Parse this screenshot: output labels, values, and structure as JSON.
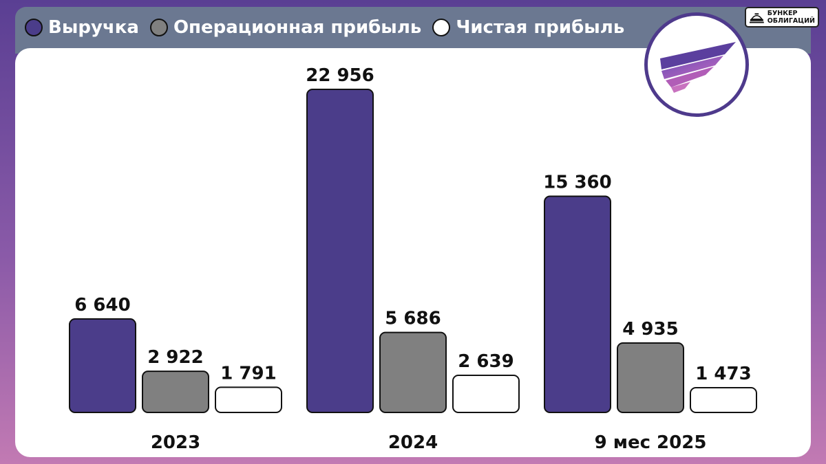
{
  "brand": {
    "line1": "БУНКЕР",
    "line2": "ОБЛИГАЦИЙ",
    "icon": "bunker-icon"
  },
  "logo": {
    "icon": "wing-logo-icon"
  },
  "colors": {
    "revenue": "#4b3d8a",
    "operating": "#808080",
    "net": "#ffffff"
  },
  "chart_data": {
    "type": "bar",
    "categories": [
      "2023",
      "2024",
      "9 мес 2025"
    ],
    "series": [
      {
        "name": "Выручка",
        "values": [
          6640,
          22956,
          15360
        ],
        "labels": [
          "6 640",
          "22 956",
          "15 360"
        ]
      },
      {
        "name": "Операционная прибыль",
        "values": [
          2922,
          5686,
          4935
        ],
        "labels": [
          "2 922",
          "5 686",
          "4 935"
        ]
      },
      {
        "name": "Чистая прибыль",
        "values": [
          1791,
          2639,
          1473
        ],
        "labels": [
          "1 791",
          "2 639",
          "1 473"
        ]
      }
    ],
    "legend_position": "top-left",
    "grid": false
  }
}
